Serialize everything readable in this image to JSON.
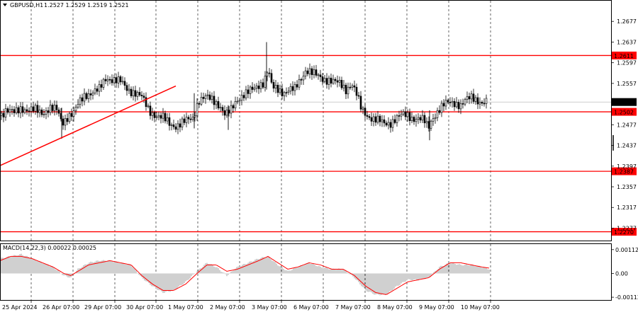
{
  "header": {
    "symbol_label": "GBPUSD,H1",
    "ohlc_label": "1.2527 1.2529 1.2519 1.2521"
  },
  "macd_label": "MACD(14,22,3) 0.00022 0.00025",
  "colors": {
    "candle": "#000000",
    "grid": "#000000",
    "level_line": "#ff0000",
    "trend_line": "#ff0000",
    "level_label_bg": "#ff0000",
    "price_label_bg": "#000000",
    "macd_hist": "#a0a0a0",
    "macd_signal": "#ff0000"
  },
  "chart_data": [
    {
      "type": "candlestick",
      "title": "GBPUSD,H1",
      "ylim": [
        1.2253,
        1.2717
      ],
      "y_ticks": [
        1.2677,
        1.2637,
        1.2597,
        1.2557,
        1.2477,
        1.2437,
        1.2397,
        1.2357,
        1.2317,
        1.2277
      ],
      "current_price": 1.2521,
      "current_price_label": "1.2521",
      "horizontal_levels": [
        {
          "value": 1.2611,
          "label": "1.2611"
        },
        {
          "value": 1.2502,
          "label": "1.2502"
        },
        {
          "value": 1.2387,
          "label": "1.2387"
        },
        {
          "value": 1.227,
          "label": "1.2270"
        }
      ],
      "trend_line": {
        "from": [
          0,
          1.2398
        ],
        "to": [
          248,
          1.2552
        ]
      },
      "x_ticks": [
        "25 Apr 2024",
        "26 Apr 07:00",
        "29 Apr 07:00",
        "30 Apr 07:00",
        "1 May 07:00",
        "2 May 07:00",
        "3 May 07:00",
        "6 May 07:00",
        "7 May 07:00",
        "8 May 07:00",
        "9 May 07:00",
        "10 May 07:00"
      ],
      "close_path": [
        [
          0,
          1.2495
        ],
        [
          8,
          1.2505
        ],
        [
          20,
          1.25
        ],
        [
          30,
          1.251
        ],
        [
          40,
          1.2505
        ],
        [
          50,
          1.2505
        ],
        [
          60,
          1.25
        ],
        [
          70,
          1.251
        ],
        [
          80,
          1.2505
        ],
        [
          88,
          1.248
        ],
        [
          96,
          1.2495
        ],
        [
          104,
          1.25
        ],
        [
          112,
          1.252
        ],
        [
          120,
          1.2535
        ],
        [
          130,
          1.254
        ],
        [
          140,
          1.2545
        ],
        [
          150,
          1.2568
        ],
        [
          160,
          1.2565
        ],
        [
          170,
          1.256
        ],
        [
          180,
          1.2545
        ],
        [
          190,
          1.254
        ],
        [
          200,
          1.253
        ],
        [
          210,
          1.2505
        ],
        [
          220,
          1.2495
        ],
        [
          230,
          1.249
        ],
        [
          240,
          1.2478
        ],
        [
          248,
          1.2475
        ],
        [
          256,
          1.248
        ],
        [
          264,
          1.2485
        ],
        [
          272,
          1.249
        ],
        [
          280,
          1.2525
        ],
        [
          290,
          1.253
        ],
        [
          300,
          1.2525
        ],
        [
          310,
          1.2515
        ],
        [
          318,
          1.2495
        ],
        [
          326,
          1.2505
        ],
        [
          334,
          1.2525
        ],
        [
          342,
          1.2535
        ],
        [
          350,
          1.254
        ],
        [
          358,
          1.2545
        ],
        [
          366,
          1.2555
        ],
        [
          372,
          1.256
        ],
        [
          378,
          1.2585
        ],
        [
          384,
          1.2548
        ],
        [
          392,
          1.2545
        ],
        [
          400,
          1.254
        ],
        [
          408,
          1.2545
        ],
        [
          416,
          1.2545
        ],
        [
          424,
          1.2565
        ],
        [
          432,
          1.2585
        ],
        [
          440,
          1.2578
        ],
        [
          448,
          1.257
        ],
        [
          456,
          1.2565
        ],
        [
          464,
          1.2565
        ],
        [
          472,
          1.256
        ],
        [
          480,
          1.2555
        ],
        [
          488,
          1.2545
        ],
        [
          496,
          1.2558
        ],
        [
          502,
          1.254
        ],
        [
          510,
          1.2505
        ],
        [
          518,
          1.2495
        ],
        [
          526,
          1.249
        ],
        [
          534,
          1.2485
        ],
        [
          542,
          1.2478
        ],
        [
          550,
          1.248
        ],
        [
          558,
          1.249
        ],
        [
          566,
          1.2495
        ],
        [
          574,
          1.2495
        ],
        [
          582,
          1.249
        ],
        [
          590,
          1.249
        ],
        [
          598,
          1.2485
        ],
        [
          604,
          1.247
        ],
        [
          610,
          1.249
        ],
        [
          618,
          1.2505
        ],
        [
          626,
          1.2515
        ],
        [
          634,
          1.252
        ],
        [
          642,
          1.252
        ],
        [
          650,
          1.2515
        ],
        [
          658,
          1.2525
        ],
        [
          666,
          1.253
        ],
        [
          674,
          1.2525
        ],
        [
          680,
          1.252
        ],
        [
          688,
          1.2521
        ]
      ]
    },
    {
      "type": "bar",
      "title": "MACD(14,22,3) 0.00022 0.00025",
      "ylim": [
        -0.00125,
        0.00138
      ],
      "y_ticks": [
        0.00112,
        0.0,
        -0.00112
      ],
      "y_tick_labels": [
        "0.00112",
        "0.00",
        "-0.00112"
      ],
      "histogram_path": [
        [
          0,
          0.0007
        ],
        [
          15,
          0.0008
        ],
        [
          30,
          0.0009
        ],
        [
          45,
          0.0007
        ],
        [
          60,
          0.0005
        ],
        [
          75,
          0.0003
        ],
        [
          90,
          -0.0001
        ],
        [
          100,
          -0.0002
        ],
        [
          110,
          0.0002
        ],
        [
          125,
          0.0005
        ],
        [
          140,
          0.0006
        ],
        [
          155,
          0.0006
        ],
        [
          170,
          0.0005
        ],
        [
          185,
          0.0004
        ],
        [
          200,
          -0.0002
        ],
        [
          215,
          -0.0006
        ],
        [
          230,
          -0.0009
        ],
        [
          245,
          -0.0008
        ],
        [
          262,
          -0.0004
        ],
        [
          278,
          0.0001
        ],
        [
          292,
          0.0005
        ],
        [
          305,
          0.0003
        ],
        [
          320,
          -0.0001
        ],
        [
          335,
          0.0003
        ],
        [
          350,
          0.0005
        ],
        [
          365,
          0.0007
        ],
        [
          378,
          0.0008
        ],
        [
          392,
          0.0004
        ],
        [
          406,
          0.0001
        ],
        [
          420,
          0.0003
        ],
        [
          436,
          0.0005
        ],
        [
          452,
          0.0003
        ],
        [
          468,
          0.0002
        ],
        [
          484,
          0.0002
        ],
        [
          500,
          -0.0002
        ],
        [
          516,
          -0.0008
        ],
        [
          530,
          -0.001
        ],
        [
          545,
          -0.001
        ],
        [
          560,
          -0.0006
        ],
        [
          575,
          -0.0003
        ],
        [
          590,
          -0.0003
        ],
        [
          605,
          -0.0002
        ],
        [
          620,
          0.0003
        ],
        [
          635,
          0.0005
        ],
        [
          650,
          0.0004
        ],
        [
          665,
          0.0004
        ],
        [
          680,
          0.0003
        ],
        [
          690,
          0.0002
        ]
      ],
      "signal_path": [
        [
          0,
          0.0006
        ],
        [
          15,
          0.0008
        ],
        [
          30,
          0.0008
        ],
        [
          45,
          0.0007
        ],
        [
          60,
          0.0005
        ],
        [
          75,
          0.0003
        ],
        [
          90,
          0.0
        ],
        [
          100,
          -0.0001
        ],
        [
          110,
          0.0001
        ],
        [
          125,
          0.0004
        ],
        [
          140,
          0.0005
        ],
        [
          155,
          0.0006
        ],
        [
          170,
          0.0005
        ],
        [
          185,
          0.0004
        ],
        [
          200,
          -0.0001
        ],
        [
          215,
          -0.0005
        ],
        [
          230,
          -0.0008
        ],
        [
          245,
          -0.0008
        ],
        [
          262,
          -0.0005
        ],
        [
          278,
          0.0
        ],
        [
          292,
          0.0004
        ],
        [
          305,
          0.0004
        ],
        [
          320,
          0.0001
        ],
        [
          335,
          0.0002
        ],
        [
          350,
          0.0004
        ],
        [
          365,
          0.0006
        ],
        [
          378,
          0.0008
        ],
        [
          392,
          0.0005
        ],
        [
          406,
          0.0002
        ],
        [
          420,
          0.0003
        ],
        [
          436,
          0.0005
        ],
        [
          452,
          0.0004
        ],
        [
          468,
          0.0002
        ],
        [
          484,
          0.0002
        ],
        [
          500,
          -0.0001
        ],
        [
          516,
          -0.0006
        ],
        [
          530,
          -0.0009
        ],
        [
          545,
          -0.001
        ],
        [
          560,
          -0.0007
        ],
        [
          575,
          -0.0004
        ],
        [
          590,
          -0.0003
        ],
        [
          605,
          -0.0002
        ],
        [
          620,
          0.0002
        ],
        [
          635,
          0.0005
        ],
        [
          650,
          0.0005
        ],
        [
          665,
          0.0004
        ],
        [
          680,
          0.0003
        ],
        [
          690,
          0.00025
        ]
      ]
    }
  ]
}
